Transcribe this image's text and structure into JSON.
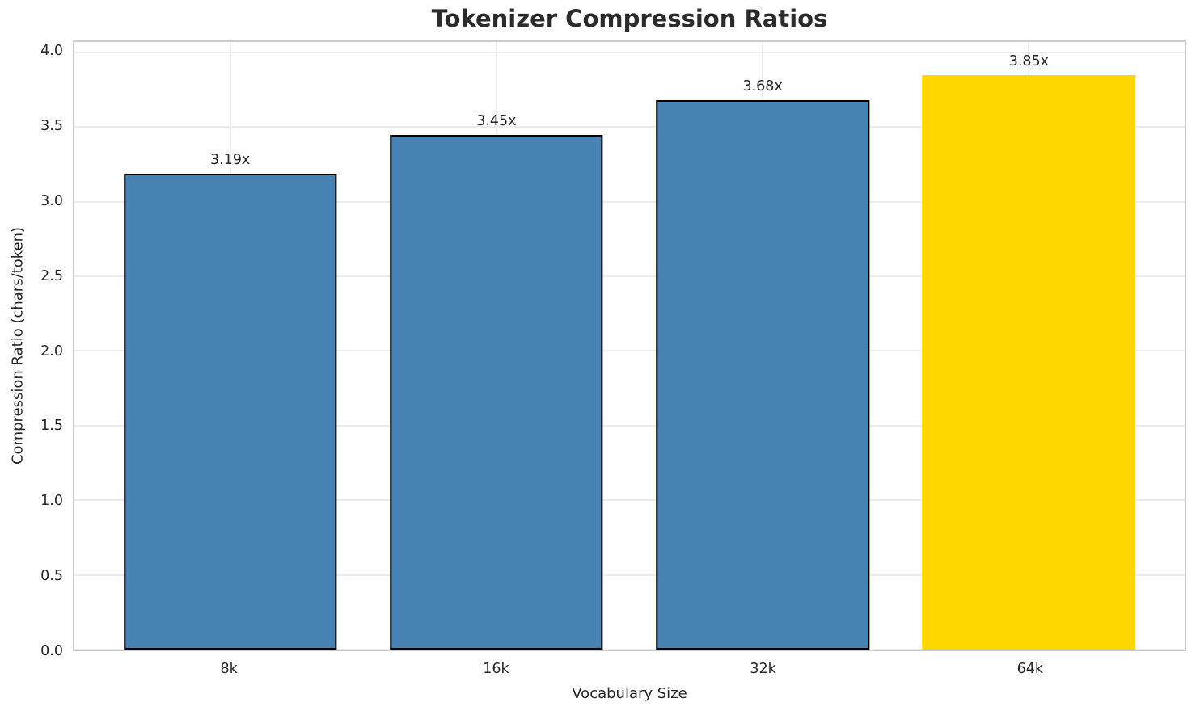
{
  "chart_data": {
    "type": "bar",
    "title": "Tokenizer Compression Ratios",
    "xlabel": "Vocabulary Size",
    "ylabel": "Compression Ratio (chars/token)",
    "categories": [
      "8k",
      "16k",
      "32k",
      "64k"
    ],
    "values": [
      3.19,
      3.45,
      3.68,
      3.85
    ],
    "bar_labels": [
      "3.19x",
      "3.45x",
      "3.68x",
      "3.85x"
    ],
    "bar_colors": [
      "#4682B4",
      "#4682B4",
      "#4682B4",
      "#FFD700"
    ],
    "bar_edge_colors": [
      "#000000",
      "#000000",
      "#000000",
      "none"
    ],
    "highlighted_category": "64k",
    "xlim": [
      -0.585,
      3.585
    ],
    "bar_width_units": 0.8,
    "ylim": [
      0,
      4.07
    ],
    "yticks": [
      0.0,
      0.5,
      1.0,
      1.5,
      2.0,
      2.5,
      3.0,
      3.5,
      4.0
    ],
    "ytick_labels": [
      "0.0",
      "0.5",
      "1.0",
      "1.5",
      "2.0",
      "2.5",
      "3.0",
      "3.5",
      "4.0"
    ],
    "grid": true,
    "grid_color": "#ececec",
    "spine_color": "#cccccc",
    "text_color": "#262626",
    "title_color": "#2b2b2b",
    "legend": false
  }
}
